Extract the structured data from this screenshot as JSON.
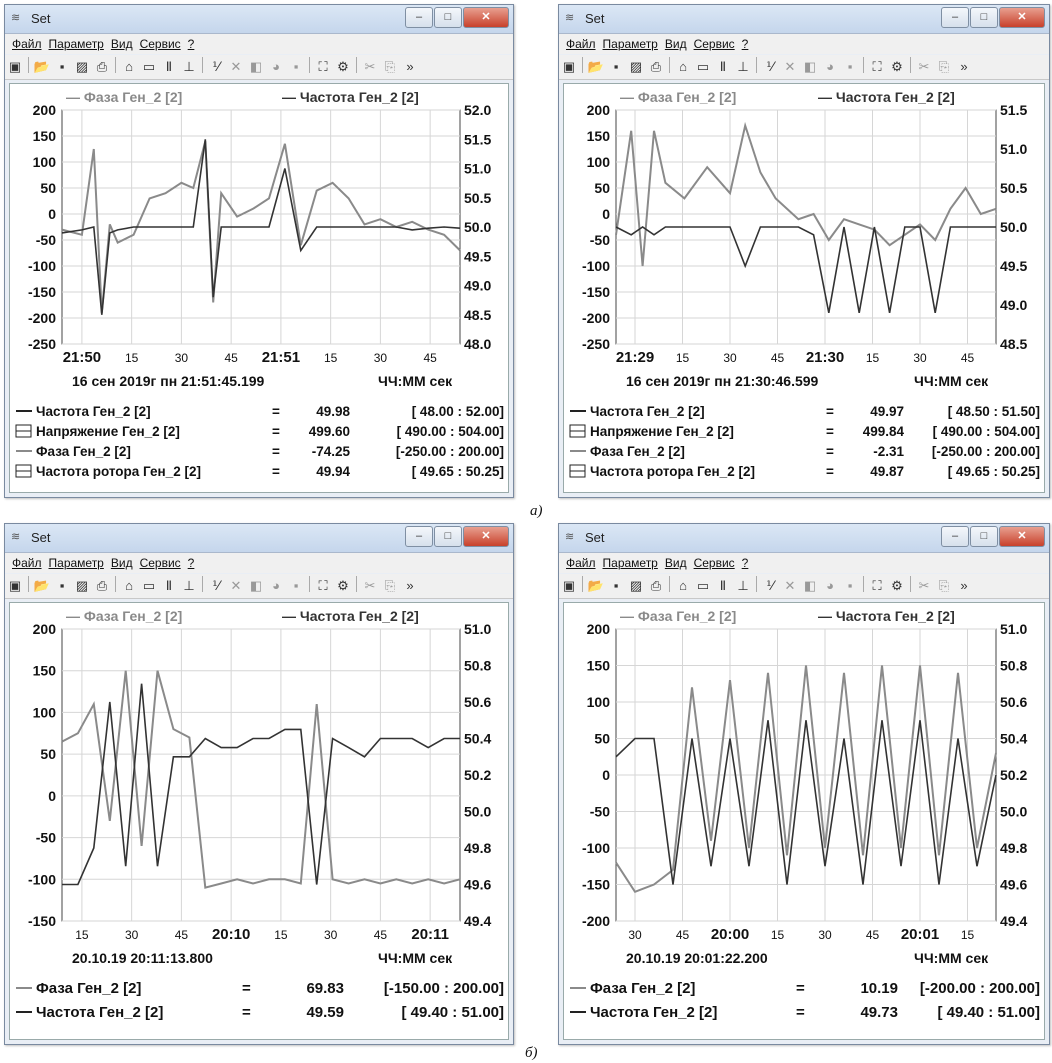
{
  "windows": [
    {
      "id": "a-left",
      "title": "Set",
      "menu": [
        "Файл",
        "Параметр",
        "Вид",
        "Сервис",
        "?"
      ],
      "legend": [
        "— Фаза Ген_2 [2]",
        "— Частота Ген_2 [2]"
      ],
      "left_ticks": [
        "200",
        "150",
        "100",
        "50",
        "0",
        "-50",
        "-100",
        "-150",
        "-200",
        "-250"
      ],
      "right_ticks": [
        "52.0",
        "51.5",
        "51.0",
        "50.5",
        "50.0",
        "49.5",
        "49.0",
        "48.5",
        "48.0"
      ],
      "time_ticks": [
        {
          "t": "21:50",
          "big": true
        },
        {
          "t": "15",
          "big": false
        },
        {
          "t": "30",
          "big": false
        },
        {
          "t": "45",
          "big": false
        },
        {
          "t": "21:51",
          "big": true
        },
        {
          "t": "15",
          "big": false
        },
        {
          "t": "30",
          "big": false
        },
        {
          "t": "45",
          "big": false
        }
      ],
      "timestamp": "16 сен 2019г пн 21:51:45.199",
      "time_unit": "ЧЧ:ММ сек",
      "readouts": [
        {
          "label": "Частота Ген_2 [2]",
          "eq": "=",
          "value": "49.98",
          "range": "[  48.00 :   52.00]",
          "marker": "line"
        },
        {
          "label": "Напряжение Ген_2 [2]",
          "eq": "=",
          "value": "499.60",
          "range": "[ 490.00 : 504.00]",
          "marker": "box"
        },
        {
          "label": "Фаза Ген_2 [2]",
          "eq": "=",
          "value": "-74.25",
          "range": "[-250.00 : 200.00]",
          "marker": "line"
        },
        {
          "label": "Частота ротора Ген_2 [2]",
          "eq": "=",
          "value": "49.94",
          "range": "[  49.65 :   50.25]",
          "marker": "box"
        }
      ]
    },
    {
      "id": "a-right",
      "title": "Set",
      "menu": [
        "Файл",
        "Параметр",
        "Вид",
        "Сервис",
        "?"
      ],
      "legend": [
        "— Фаза Ген_2 [2]",
        "— Частота Ген_2 [2]"
      ],
      "left_ticks": [
        "200",
        "150",
        "100",
        "50",
        "0",
        "-50",
        "-100",
        "-150",
        "-200",
        "-250"
      ],
      "right_ticks": [
        "51.5",
        "51.0",
        "50.5",
        "50.0",
        "49.5",
        "49.0",
        "48.5"
      ],
      "time_ticks": [
        {
          "t": "21:29",
          "big": true
        },
        {
          "t": "15",
          "big": false
        },
        {
          "t": "30",
          "big": false
        },
        {
          "t": "45",
          "big": false
        },
        {
          "t": "21:30",
          "big": true
        },
        {
          "t": "15",
          "big": false
        },
        {
          "t": "30",
          "big": false
        },
        {
          "t": "45",
          "big": false
        }
      ],
      "timestamp": "16 сен 2019г пн 21:30:46.599",
      "time_unit": "ЧЧ:ММ сек",
      "readouts": [
        {
          "label": "Частота Ген_2 [2]",
          "eq": "=",
          "value": "49.97",
          "range": "[  48.50 :   51.50]",
          "marker": "line"
        },
        {
          "label": "Напряжение Ген_2 [2]",
          "eq": "=",
          "value": "499.84",
          "range": "[ 490.00 : 504.00]",
          "marker": "box"
        },
        {
          "label": "Фаза Ген_2 [2]",
          "eq": "=",
          "value": "-2.31",
          "range": "[-250.00 : 200.00]",
          "marker": "line"
        },
        {
          "label": "Частота ротора Ген_2 [2]",
          "eq": "=",
          "value": "49.87",
          "range": "[  49.65 :   50.25]",
          "marker": "box"
        }
      ]
    },
    {
      "id": "b-left",
      "title": "Set",
      "menu": [
        "Файл",
        "Параметр",
        "Вид",
        "Сервис",
        "?"
      ],
      "legend": [
        "— Фаза Ген_2 [2]",
        "— Частота Ген_2 [2]"
      ],
      "left_ticks": [
        "200",
        "150",
        "100",
        "50",
        "0",
        "-50",
        "-100",
        "-150"
      ],
      "right_ticks": [
        "51.0",
        "50.8",
        "50.6",
        "50.4",
        "50.2",
        "50.0",
        "49.8",
        "49.6",
        "49.4"
      ],
      "time_ticks": [
        {
          "t": "15",
          "big": false
        },
        {
          "t": "30",
          "big": false
        },
        {
          "t": "45",
          "big": false
        },
        {
          "t": "20:10",
          "big": true
        },
        {
          "t": "15",
          "big": false
        },
        {
          "t": "30",
          "big": false
        },
        {
          "t": "45",
          "big": false
        },
        {
          "t": "20:11",
          "big": true
        }
      ],
      "timestamp": "20.10.19 20:11:13.800",
      "time_unit": "ЧЧ:ММ сек",
      "readouts": [
        {
          "label": "Фаза Ген_2 [2]",
          "eq": "=",
          "value": "69.83",
          "range": "[-150.00 : 200.00]",
          "marker": "line"
        },
        {
          "label": "Частота Ген_2 [2]",
          "eq": "=",
          "value": "49.59",
          "range": "[  49.40 :   51.00]",
          "marker": "line"
        }
      ]
    },
    {
      "id": "b-right",
      "title": "Set",
      "menu": [
        "Файл",
        "Параметр",
        "Вид",
        "Сервис",
        "?"
      ],
      "legend": [
        "— Фаза Ген_2 [2]",
        "— Частота Ген_2 [2]"
      ],
      "left_ticks": [
        "200",
        "150",
        "100",
        "50",
        "0",
        "-50",
        "-100",
        "-150",
        "-200"
      ],
      "right_ticks": [
        "51.0",
        "50.8",
        "50.6",
        "50.4",
        "50.2",
        "50.0",
        "49.8",
        "49.6",
        "49.4"
      ],
      "time_ticks": [
        {
          "t": "30",
          "big": false
        },
        {
          "t": "45",
          "big": false
        },
        {
          "t": "20:00",
          "big": true
        },
        {
          "t": "15",
          "big": false
        },
        {
          "t": "30",
          "big": false
        },
        {
          "t": "45",
          "big": false
        },
        {
          "t": "20:01",
          "big": true
        },
        {
          "t": "15",
          "big": false
        }
      ],
      "timestamp": "20.10.19 20:01:22.200",
      "time_unit": "ЧЧ:ММ сек",
      "readouts": [
        {
          "label": "Фаза Ген_2 [2]",
          "eq": "=",
          "value": "10.19",
          "range": "[-200.00 : 200.00]",
          "marker": "line"
        },
        {
          "label": "Частота Ген_2 [2]",
          "eq": "=",
          "value": "49.73",
          "range": "[  49.40 :   51.00]",
          "marker": "line"
        }
      ]
    }
  ],
  "captions": {
    "a": "а)",
    "b": "б)"
  },
  "colors": {
    "phase": "#8a8a8a",
    "freq": "#333333",
    "grid": "#d6d6d6"
  },
  "chart_data": [
    {
      "type": "line",
      "panel": "a-left",
      "y_left_range": [
        -250,
        200
      ],
      "y_right_range": [
        48.0,
        52.0
      ],
      "grid": true,
      "series": [
        {
          "name": "Фаза Ген_2 [2]",
          "axis": "left",
          "x": [
            0,
            5,
            8,
            10,
            12,
            14,
            18,
            22,
            26,
            30,
            33,
            36,
            38,
            40,
            44,
            48,
            52,
            56,
            60,
            64,
            68,
            72,
            76,
            80,
            84,
            88,
            92,
            96,
            100
          ],
          "y": [
            -30,
            -40,
            125,
            -190,
            -20,
            -55,
            -40,
            30,
            40,
            60,
            50,
            140,
            -170,
            40,
            -5,
            10,
            30,
            135,
            -60,
            45,
            60,
            30,
            -20,
            -10,
            -25,
            -15,
            -30,
            -40,
            -70
          ]
        },
        {
          "name": "Частота Ген_2 [2]",
          "axis": "right",
          "x": [
            0,
            5,
            8,
            10,
            12,
            14,
            18,
            22,
            26,
            30,
            33,
            36,
            38,
            40,
            44,
            48,
            52,
            56,
            60,
            64,
            68,
            72,
            76,
            80,
            84,
            88,
            92,
            96,
            100
          ],
          "y": [
            49.9,
            49.95,
            50.0,
            48.5,
            49.9,
            49.95,
            50.0,
            50.0,
            50.0,
            50.0,
            50.0,
            51.5,
            48.8,
            50.0,
            50.0,
            50.0,
            50.0,
            51.0,
            49.6,
            50.0,
            50.0,
            50.0,
            50.0,
            50.0,
            50.0,
            49.95,
            49.98,
            50.0,
            49.98
          ]
        }
      ]
    },
    {
      "type": "line",
      "panel": "a-right",
      "y_left_range": [
        -250,
        200
      ],
      "y_right_range": [
        48.5,
        51.5
      ],
      "grid": true,
      "series": [
        {
          "name": "Фаза Ген_2 [2]",
          "axis": "left",
          "x": [
            0,
            4,
            7,
            10,
            13,
            18,
            24,
            30,
            34,
            38,
            42,
            48,
            52,
            56,
            60,
            64,
            68,
            72,
            76,
            80,
            84,
            88,
            92,
            96,
            100
          ],
          "y": [
            -40,
            160,
            -100,
            160,
            60,
            30,
            90,
            40,
            170,
            80,
            30,
            -10,
            0,
            -50,
            -10,
            -20,
            -30,
            -60,
            -40,
            -20,
            -50,
            10,
            50,
            0,
            10
          ]
        },
        {
          "name": "Частота Ген_2 [2]",
          "axis": "right",
          "x": [
            0,
            4,
            7,
            10,
            13,
            18,
            24,
            30,
            34,
            38,
            42,
            48,
            52,
            56,
            60,
            64,
            68,
            72,
            76,
            80,
            84,
            88,
            92,
            96,
            100
          ],
          "y": [
            50.0,
            49.9,
            50.0,
            49.9,
            50.0,
            50.0,
            50.0,
            50.0,
            49.5,
            50.0,
            50.0,
            50.0,
            49.9,
            48.9,
            50.0,
            48.9,
            50.0,
            48.9,
            50.0,
            50.0,
            48.9,
            50.0,
            50.0,
            50.0,
            50.0
          ]
        }
      ]
    },
    {
      "type": "line",
      "panel": "b-left",
      "y_left_range": [
        -150,
        200
      ],
      "y_right_range": [
        49.4,
        51.0
      ],
      "grid": true,
      "series": [
        {
          "name": "Фаза Ген_2 [2]",
          "axis": "left",
          "x": [
            0,
            4,
            8,
            12,
            16,
            20,
            24,
            28,
            32,
            36,
            40,
            44,
            48,
            52,
            56,
            60,
            64,
            68,
            72,
            76,
            80,
            84,
            88,
            92,
            96,
            100
          ],
          "y": [
            65,
            75,
            110,
            -30,
            150,
            -60,
            150,
            80,
            70,
            -110,
            -105,
            -100,
            -105,
            -100,
            -100,
            -105,
            110,
            -100,
            -105,
            -100,
            -105,
            -100,
            -105,
            -100,
            -105,
            -100
          ]
        },
        {
          "name": "Частота Ген_2 [2]",
          "axis": "right",
          "x": [
            0,
            4,
            8,
            12,
            16,
            20,
            24,
            28,
            32,
            36,
            40,
            44,
            48,
            52,
            56,
            60,
            64,
            68,
            72,
            76,
            80,
            84,
            88,
            92,
            96,
            100
          ],
          "y": [
            49.6,
            49.6,
            49.8,
            50.6,
            49.7,
            50.7,
            49.7,
            50.3,
            50.3,
            50.4,
            50.35,
            50.35,
            50.4,
            50.4,
            50.45,
            50.45,
            49.6,
            50.4,
            50.35,
            50.3,
            50.4,
            50.4,
            50.4,
            50.35,
            50.4,
            50.4
          ]
        }
      ]
    },
    {
      "type": "line",
      "panel": "b-right",
      "y_left_range": [
        -200,
        200
      ],
      "y_right_range": [
        49.4,
        51.0
      ],
      "grid": true,
      "series": [
        {
          "name": "Фаза Ген_2 [2]",
          "axis": "left",
          "x": [
            0,
            5,
            10,
            15,
            20,
            25,
            30,
            35,
            40,
            45,
            50,
            55,
            60,
            65,
            70,
            75,
            80,
            85,
            90,
            95,
            100
          ],
          "y": [
            -120,
            -160,
            -150,
            -130,
            120,
            -90,
            130,
            -100,
            140,
            -110,
            150,
            -100,
            140,
            -110,
            150,
            -100,
            150,
            -110,
            140,
            -100,
            30
          ]
        },
        {
          "name": "Частота Ген_2 [2]",
          "axis": "right",
          "x": [
            0,
            5,
            10,
            15,
            20,
            25,
            30,
            35,
            40,
            45,
            50,
            55,
            60,
            65,
            70,
            75,
            80,
            85,
            90,
            95,
            100
          ],
          "y": [
            50.3,
            50.4,
            50.4,
            49.6,
            50.4,
            49.7,
            50.4,
            49.7,
            50.5,
            49.6,
            50.5,
            49.7,
            50.4,
            49.6,
            50.5,
            49.7,
            50.5,
            49.6,
            50.4,
            49.7,
            50.2
          ]
        }
      ]
    }
  ]
}
